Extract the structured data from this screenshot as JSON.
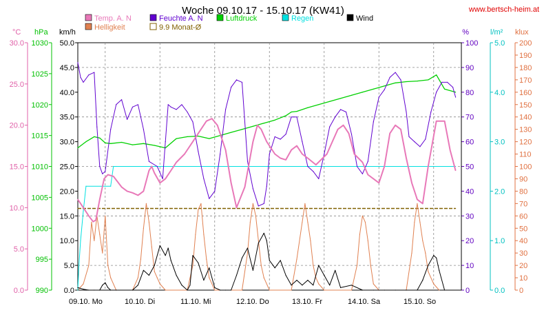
{
  "header": {
    "title": "Woche 09.10.17 - 15.10.17 (KW41)",
    "website": "www.bertsch-heim.at"
  },
  "chart_data": {
    "type": "line",
    "title": "Woche 09.10.17 - 15.10.17 (KW41)",
    "x_start": "09.10.",
    "x_labels": [
      "09.10.  Mo",
      "10.10.  Di",
      "11.10.  Mi",
      "12.10.  Do",
      "13.10.  Fr",
      "14.10.  Sa",
      "15.10.  So"
    ],
    "axes": {
      "temp": {
        "unit": "°C",
        "range": [
          0,
          30
        ],
        "ticks": [
          "0.0",
          "5.0",
          "10.0",
          "15.0",
          "20.0",
          "25.0",
          "30.0"
        ],
        "color": "#e060a8"
      },
      "pressure": {
        "unit": "hPa",
        "range": [
          990,
          1030
        ],
        "ticks": [
          "990",
          "995",
          "1000",
          "1005",
          "1010",
          "1015",
          "1020",
          "1025",
          "1030"
        ],
        "color": "#00c000"
      },
      "wind": {
        "unit": "km/h",
        "range": [
          0,
          50
        ],
        "ticks": [
          "0.0",
          "5.0",
          "10.0",
          "15.0",
          "20.0",
          "25.0",
          "30.0",
          "35.0",
          "40.0",
          "45.0",
          "50.0"
        ],
        "color": "#000000"
      },
      "humidity": {
        "unit": "%",
        "range": [
          0,
          100
        ],
        "ticks": [
          "0",
          "10",
          "20",
          "30",
          "40",
          "50",
          "60",
          "70",
          "80",
          "90",
          "100"
        ],
        "color": "#6000c0"
      },
      "rain": {
        "unit": "l/m²",
        "range": [
          0,
          5
        ],
        "ticks": [
          "0.0",
          "1.0",
          "2.0",
          "3.0",
          "4.0",
          "5.0"
        ],
        "color": "#00c0c0"
      },
      "light": {
        "unit": "klux",
        "range": [
          0,
          200
        ],
        "ticks": [
          "0",
          "10",
          "20",
          "30",
          "40",
          "50",
          "60",
          "70",
          "80",
          "90",
          "100",
          "110",
          "120",
          "130",
          "140",
          "150",
          "160",
          "170",
          "180",
          "190",
          "200"
        ],
        "color": "#e07040"
      }
    },
    "legend": [
      {
        "name": "Temp. A. N",
        "color": "#e878b8"
      },
      {
        "name": "Feuchte A. N",
        "color": "#6000d0"
      },
      {
        "name": "Luftdruck",
        "color": "#00d000"
      },
      {
        "name": "Regen",
        "color": "#00e0e0"
      },
      {
        "name": "Wind",
        "color": "#000000"
      },
      {
        "name": "Helligkeit",
        "color": "#e08050"
      },
      {
        "name": "9.9 Monat-Ø",
        "color": "#806000"
      }
    ],
    "series": [
      {
        "name": "Temp. A. N",
        "axis": "temp",
        "color": "#e878b8",
        "x": [
          0,
          0.1,
          0.2,
          0.28,
          0.33,
          0.4,
          0.48,
          0.55,
          0.65,
          0.8,
          0.9,
          1.0,
          1.1,
          1.2,
          1.3,
          1.35,
          1.4,
          1.5,
          1.6,
          1.7,
          1.8,
          1.95,
          2.1,
          2.2,
          2.35,
          2.45,
          2.55,
          2.7,
          2.8,
          2.9,
          3.05,
          3.2,
          3.28,
          3.35,
          3.45,
          3.6,
          3.7,
          3.8,
          3.9,
          4.0,
          4.1,
          4.2,
          4.35,
          4.55,
          4.75,
          4.85,
          4.95,
          5.05,
          5.2,
          5.3,
          5.4,
          5.5,
          5.6,
          5.7,
          5.8,
          5.9,
          6.0,
          6.1,
          6.2,
          6.3,
          6.4,
          6.55,
          6.7,
          6.8,
          6.9
        ],
        "values": [
          11.0,
          10.0,
          9.0,
          8.3,
          8.5,
          11.0,
          13.5,
          14.0,
          13.8,
          12.5,
          12.0,
          11.8,
          11.5,
          12.0,
          14.5,
          15.0,
          14.2,
          13.0,
          13.5,
          14.5,
          15.5,
          16.5,
          18.0,
          19.0,
          20.5,
          20.8,
          20.0,
          17.0,
          13.0,
          10.0,
          12.5,
          18.0,
          20.0,
          19.5,
          18.0,
          16.5,
          16.0,
          15.8,
          17.0,
          17.5,
          16.5,
          16.0,
          15.2,
          16.5,
          19.5,
          20.0,
          19.0,
          16.5,
          15.5,
          14.0,
          13.5,
          13.0,
          15.0,
          19.0,
          20.0,
          19.5,
          16.0,
          13.0,
          11.0,
          10.5,
          15.0,
          20.5,
          20.5,
          17.0,
          14.5
        ]
      },
      {
        "name": "Feuchte A. N",
        "axis": "humidity",
        "color": "#6000d0",
        "x": [
          0,
          0.05,
          0.1,
          0.2,
          0.3,
          0.35,
          0.4,
          0.45,
          0.5,
          0.6,
          0.7,
          0.8,
          0.9,
          1.0,
          1.1,
          1.2,
          1.3,
          1.45,
          1.55,
          1.6,
          1.65,
          1.7,
          1.8,
          1.9,
          2.0,
          2.1,
          2.2,
          2.3,
          2.4,
          2.5,
          2.6,
          2.7,
          2.8,
          2.9,
          3.0,
          3.1,
          3.2,
          3.3,
          3.4,
          3.45,
          3.5,
          3.6,
          3.7,
          3.8,
          3.9,
          4.0,
          4.1,
          4.2,
          4.3,
          4.4,
          4.5,
          4.6,
          4.7,
          4.8,
          4.9,
          5.0,
          5.1,
          5.2,
          5.3,
          5.4,
          5.5,
          5.6,
          5.7,
          5.8,
          5.9,
          6.0,
          6.05,
          6.15,
          6.25,
          6.35,
          6.45,
          6.55,
          6.65,
          6.75,
          6.85,
          6.9
        ],
        "values": [
          92,
          86,
          84,
          87,
          88,
          66,
          50,
          47,
          48,
          65,
          75,
          77,
          69,
          74,
          75,
          65,
          52,
          50,
          45,
          60,
          75,
          74,
          73,
          75,
          72,
          68,
          56,
          45,
          37,
          40,
          55,
          73,
          82,
          85,
          84,
          52,
          41,
          34,
          35,
          42,
          55,
          62,
          61,
          63,
          70,
          70,
          60,
          50,
          48,
          45,
          55,
          66,
          70,
          73,
          72,
          63,
          50,
          47,
          52,
          68,
          78,
          81,
          86,
          88,
          85,
          72,
          62,
          60,
          58,
          61,
          72,
          80,
          84,
          84,
          82,
          78
        ]
      },
      {
        "name": "Luftdruck",
        "axis": "pressure",
        "color": "#00d000",
        "x": [
          0,
          0.15,
          0.3,
          0.4,
          0.5,
          0.6,
          0.8,
          1.0,
          1.2,
          1.4,
          1.6,
          1.8,
          2.0,
          2.2,
          2.4,
          2.6,
          2.8,
          3.0,
          3.2,
          3.4,
          3.6,
          3.8,
          3.9,
          4.0,
          4.2,
          4.4,
          4.6,
          4.8,
          5.0,
          5.2,
          5.4,
          5.6,
          5.8,
          6.0,
          6.2,
          6.4,
          6.55,
          6.7,
          6.9
        ],
        "values": [
          1013.0,
          1014.0,
          1014.8,
          1014.6,
          1013.8,
          1013.7,
          1013.9,
          1013.5,
          1013.7,
          1013.4,
          1013.0,
          1014.5,
          1014.8,
          1014.9,
          1014.5,
          1015.0,
          1015.5,
          1016.0,
          1016.5,
          1017.0,
          1017.5,
          1018.2,
          1018.8,
          1018.9,
          1019.5,
          1020.0,
          1020.5,
          1021.0,
          1021.5,
          1022.0,
          1022.5,
          1023.0,
          1023.5,
          1023.7,
          1023.8,
          1024.0,
          1024.8,
          1022.5,
          1022.0
        ]
      },
      {
        "name": "Regen",
        "axis": "rain",
        "color": "#00e0e0",
        "x": [
          0,
          0.02,
          0.05,
          0.1,
          0.15,
          0.5,
          0.6,
          0.65,
          0.7,
          3.0,
          6.9
        ],
        "values": [
          0,
          0.5,
          1.0,
          1.6,
          2.1,
          2.1,
          2.1,
          2.5,
          2.5,
          2.5,
          2.5
        ]
      },
      {
        "name": "Wind",
        "axis": "wind",
        "color": "#000000",
        "x": [
          0,
          0.1,
          0.2,
          0.3,
          0.4,
          0.45,
          0.5,
          0.55,
          0.6,
          0.7,
          1.0,
          1.1,
          1.2,
          1.3,
          1.4,
          1.5,
          1.6,
          1.65,
          1.7,
          1.8,
          1.9,
          2.0,
          2.05,
          2.1,
          2.2,
          2.3,
          2.4,
          2.5,
          2.6,
          2.7,
          2.8,
          2.9,
          3.0,
          3.1,
          3.2,
          3.3,
          3.4,
          3.45,
          3.5,
          3.6,
          3.7,
          3.8,
          3.9,
          4.0,
          4.1,
          4.2,
          4.3,
          4.4,
          4.5,
          4.6,
          4.7,
          4.8,
          5.0,
          5.2,
          5.4,
          5.6,
          5.8,
          6.0,
          6.2,
          6.3,
          6.4,
          6.5,
          6.55,
          6.6,
          6.7
        ],
        "values": [
          0.5,
          0.2,
          0,
          0,
          0,
          1.0,
          1.5,
          0.5,
          0,
          0,
          0,
          1.0,
          4.0,
          3.0,
          5.0,
          9.0,
          7.0,
          8.5,
          6.0,
          3.0,
          1.0,
          0,
          1.0,
          7.0,
          5.5,
          2.0,
          4.5,
          0.5,
          0,
          0,
          0,
          3.0,
          6.5,
          8.5,
          4.0,
          9.5,
          11.5,
          10.0,
          6.0,
          4.5,
          6.0,
          3.0,
          1.0,
          2.0,
          1.0,
          2.0,
          1.0,
          5.0,
          3.0,
          1.0,
          4.0,
          0.5,
          1.0,
          0,
          0,
          0,
          0,
          0,
          0,
          2.0,
          5.0,
          7.0,
          6.5,
          4.0,
          0
        ]
      },
      {
        "name": "Helligkeit",
        "axis": "light",
        "color": "#e08050",
        "x": [
          0,
          0.1,
          0.2,
          0.25,
          0.3,
          0.35,
          0.4,
          0.45,
          0.5,
          0.55,
          0.6,
          0.7,
          1.0,
          1.1,
          1.15,
          1.2,
          1.25,
          1.3,
          1.35,
          1.4,
          1.45,
          1.5,
          1.6,
          2.0,
          2.1,
          2.15,
          2.2,
          2.25,
          2.3,
          2.35,
          2.4,
          2.5,
          3.0,
          3.1,
          3.15,
          3.2,
          3.25,
          3.3,
          3.35,
          3.4,
          3.5,
          3.9,
          4.0,
          4.1,
          4.15,
          4.2,
          4.25,
          4.3,
          4.35,
          4.4,
          4.5,
          5.0,
          5.1,
          5.15,
          5.2,
          5.25,
          5.3,
          5.35,
          5.4,
          5.5,
          6.0,
          6.1,
          6.15,
          6.2,
          6.25,
          6.3,
          6.35,
          6.4,
          6.5,
          6.6
        ],
        "values": [
          0,
          5,
          20,
          55,
          40,
          60,
          45,
          30,
          60,
          20,
          10,
          0,
          0,
          10,
          25,
          50,
          70,
          55,
          35,
          15,
          10,
          5,
          0,
          0,
          20,
          45,
          65,
          70,
          45,
          25,
          10,
          0,
          0,
          30,
          55,
          70,
          60,
          40,
          20,
          10,
          0,
          0,
          25,
          55,
          70,
          55,
          40,
          20,
          10,
          5,
          0,
          0,
          20,
          45,
          60,
          55,
          40,
          20,
          5,
          0,
          0,
          30,
          55,
          70,
          55,
          40,
          30,
          15,
          5,
          0
        ]
      },
      {
        "name": "9.9 Monat-Ø",
        "axis": "temp",
        "color": "#806000",
        "x": [
          0,
          6.9
        ],
        "values": [
          9.9,
          9.9
        ]
      }
    ]
  }
}
